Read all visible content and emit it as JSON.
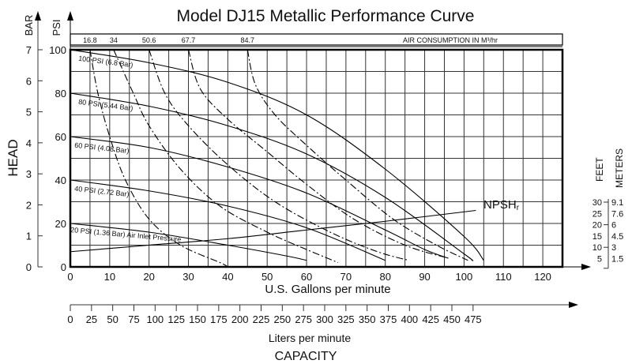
{
  "chart_data": {
    "type": "line",
    "title": "Model DJ15 Metallic Performance Curve",
    "ylabel": "HEAD",
    "xlabel": "U.S. Gallons per minute",
    "x2label": "Liters per minute",
    "bottom_label": "CAPACITY",
    "xlim": [
      0,
      125
    ],
    "ylim": [
      0,
      100
    ],
    "grid": true,
    "x_ticks": [
      0,
      10,
      20,
      30,
      40,
      50,
      60,
      70,
      80,
      90,
      100,
      110,
      120
    ],
    "y_psi_label": "PSI",
    "y_psi_ticks": [
      0,
      20,
      40,
      60,
      80,
      100
    ],
    "y_bar_label": "BAR",
    "y_bar_ticks": [
      0,
      1,
      2,
      3,
      4,
      5,
      6,
      7
    ],
    "lpm_ticks": [
      0,
      25,
      50,
      75,
      100,
      125,
      150,
      175,
      200,
      225,
      250,
      275,
      300,
      325,
      350,
      375,
      400,
      425,
      450,
      475
    ],
    "air_consumption": {
      "label": "AIR CONSUMPTION IN M³/hr",
      "values": [
        "16.8",
        "34",
        "50.6",
        "67.7",
        "84.7"
      ],
      "x_positions_gpm": [
        5,
        11,
        20,
        30,
        45
      ]
    },
    "series": [
      {
        "name": "100 PSI (6.8 Bar)",
        "style": "solid",
        "points": [
          [
            0,
            100
          ],
          [
            20,
            94
          ],
          [
            40,
            85
          ],
          [
            60,
            70
          ],
          [
            80,
            45
          ],
          [
            100,
            14
          ],
          [
            105,
            3
          ]
        ]
      },
      {
        "name": "80 PSI (5.44 Bar)",
        "style": "solid",
        "points": [
          [
            0,
            80
          ],
          [
            20,
            74
          ],
          [
            40,
            65
          ],
          [
            60,
            52
          ],
          [
            80,
            32
          ],
          [
            100,
            6
          ],
          [
            102,
            3
          ]
        ]
      },
      {
        "name": "60 PSI (4.08 Bar)",
        "style": "solid",
        "points": [
          [
            0,
            60
          ],
          [
            20,
            55
          ],
          [
            40,
            46
          ],
          [
            60,
            34
          ],
          [
            80,
            17
          ],
          [
            90,
            8
          ],
          [
            96,
            4
          ]
        ]
      },
      {
        "name": "40 PSI (2.72 Bar)",
        "style": "solid",
        "points": [
          [
            0,
            40
          ],
          [
            20,
            35
          ],
          [
            40,
            28
          ],
          [
            60,
            18
          ],
          [
            80,
            3
          ]
        ]
      },
      {
        "name": "20 PSI (1.36 Bar) Air Inlet Pressure",
        "style": "solid",
        "points": [
          [
            0,
            20
          ],
          [
            20,
            16
          ],
          [
            40,
            10
          ],
          [
            55,
            5
          ],
          [
            60,
            3
          ]
        ]
      },
      {
        "name": "NPSHr",
        "style": "solid",
        "points": [
          [
            0,
            7
          ],
          [
            20,
            10
          ],
          [
            40,
            13
          ],
          [
            60,
            17
          ],
          [
            80,
            21
          ],
          [
            103,
            26
          ]
        ]
      }
    ],
    "air_curves": [
      {
        "name": "16.8",
        "style": "dashed",
        "points": [
          [
            5,
            100
          ],
          [
            7,
            80
          ],
          [
            10,
            60
          ],
          [
            14,
            40
          ],
          [
            20,
            22
          ],
          [
            28,
            10
          ],
          [
            38,
            2
          ],
          [
            40,
            0
          ]
        ]
      },
      {
        "name": "34",
        "style": "dashed",
        "points": [
          [
            11,
            100
          ],
          [
            16,
            80
          ],
          [
            20,
            65
          ],
          [
            28,
            45
          ],
          [
            38,
            28
          ],
          [
            50,
            16
          ],
          [
            60,
            8
          ],
          [
            68,
            2
          ]
        ]
      },
      {
        "name": "50.6",
        "style": "dashed",
        "points": [
          [
            20,
            100
          ],
          [
            24,
            80
          ],
          [
            30,
            65
          ],
          [
            40,
            47
          ],
          [
            52,
            30
          ],
          [
            66,
            16
          ],
          [
            78,
            7
          ],
          [
            86,
            3
          ]
        ]
      },
      {
        "name": "67.7",
        "style": "dashed",
        "points": [
          [
            30,
            100
          ],
          [
            33,
            82
          ],
          [
            40,
            68
          ],
          [
            50,
            53
          ],
          [
            60,
            38
          ],
          [
            72,
            22
          ],
          [
            85,
            10
          ],
          [
            96,
            4
          ]
        ]
      },
      {
        "name": "84.7",
        "style": "dashed",
        "points": [
          [
            45,
            100
          ],
          [
            47,
            84
          ],
          [
            52,
            70
          ],
          [
            60,
            56
          ],
          [
            70,
            40
          ],
          [
            82,
            22
          ],
          [
            93,
            10
          ],
          [
            101,
            3
          ]
        ]
      }
    ],
    "right_scale": {
      "feet_label": "FEET",
      "meters_label": "METERS",
      "feet": [
        "30",
        "25",
        "20",
        "15",
        "10",
        "5"
      ],
      "meters": [
        "9.1",
        "7.6",
        "6",
        "4.5",
        "3",
        "1.5"
      ]
    },
    "npsh_label": "NPSH",
    "npsh_sub": "r"
  }
}
